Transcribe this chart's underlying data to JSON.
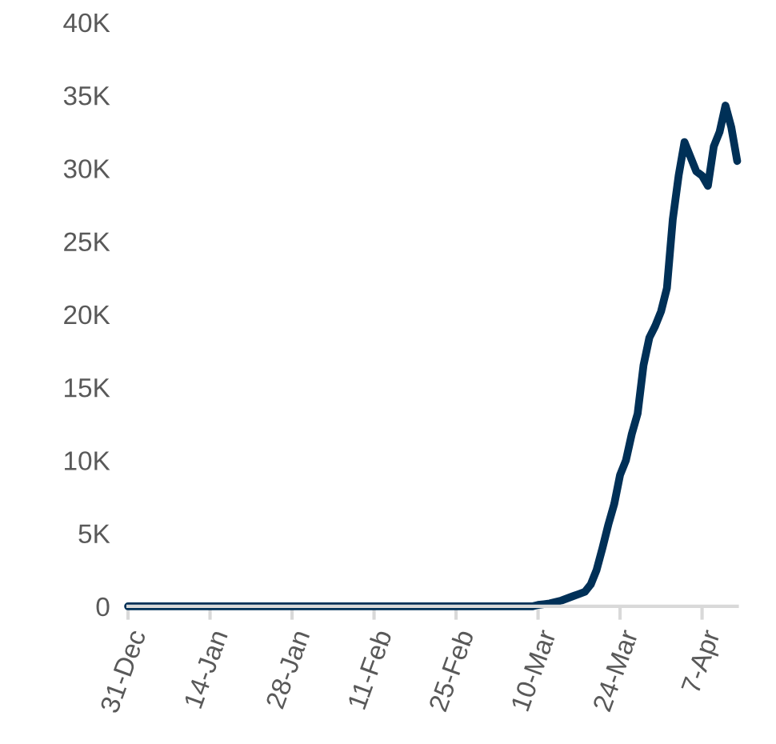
{
  "chart_data": {
    "type": "line",
    "categories": [
      "31-Dec",
      null,
      null,
      null,
      null,
      null,
      null,
      null,
      null,
      null,
      null,
      null,
      null,
      null,
      "14-Jan",
      null,
      null,
      null,
      null,
      null,
      null,
      null,
      null,
      null,
      null,
      null,
      null,
      null,
      "28-Jan",
      null,
      null,
      null,
      null,
      null,
      null,
      null,
      null,
      null,
      null,
      null,
      null,
      null,
      "11-Feb",
      null,
      null,
      null,
      null,
      null,
      null,
      null,
      null,
      null,
      null,
      null,
      null,
      null,
      "25-Feb",
      null,
      null,
      null,
      null,
      null,
      null,
      null,
      null,
      null,
      null,
      null,
      null,
      null,
      "10-Mar",
      null,
      null,
      null,
      null,
      null,
      null,
      null,
      null,
      null,
      null,
      null,
      null,
      null,
      "24-Mar",
      null,
      null,
      null,
      null,
      null,
      null,
      null,
      null,
      null,
      null,
      null,
      null,
      null,
      "7-Apr",
      null,
      null,
      null,
      null,
      null,
      null
    ],
    "series": [
      {
        "color": "#003057",
        "values": [
          0,
          0,
          0,
          0,
          0,
          0,
          0,
          0,
          0,
          0,
          0,
          0,
          0,
          0,
          0,
          0,
          0,
          0,
          0,
          0,
          0,
          0,
          0,
          0,
          0,
          0,
          0,
          0,
          0,
          0,
          0,
          0,
          0,
          0,
          0,
          0,
          0,
          0,
          0,
          0,
          0,
          0,
          0,
          0,
          0,
          0,
          0,
          0,
          0,
          0,
          0,
          0,
          0,
          0,
          0,
          0,
          0,
          0,
          0,
          0,
          0,
          0,
          0,
          0,
          0,
          0,
          0,
          0,
          0,
          0,
          100,
          150,
          200,
          300,
          400,
          550,
          700,
          850,
          1000,
          1500,
          2500,
          4000,
          5600,
          7000,
          9000,
          10000,
          11800,
          13200,
          16500,
          18400,
          19200,
          20200,
          21800,
          26500,
          29500,
          31800,
          30800,
          29800,
          29500,
          28800,
          31500,
          32500,
          34300,
          32800,
          30500
        ]
      }
    ],
    "ylim": [
      0,
      40000
    ],
    "yticks": [
      {
        "value": 0,
        "label": "0"
      },
      {
        "value": 5000,
        "label": "5K"
      },
      {
        "value": 10000,
        "label": "10K"
      },
      {
        "value": 15000,
        "label": "15K"
      },
      {
        "value": 20000,
        "label": "20K"
      },
      {
        "value": 25000,
        "label": "25K"
      },
      {
        "value": 30000,
        "label": "30K"
      },
      {
        "value": 35000,
        "label": "35K"
      },
      {
        "value": 40000,
        "label": "40K"
      }
    ],
    "grid": false,
    "legend": false,
    "marker": "none",
    "line_style": "solid"
  }
}
